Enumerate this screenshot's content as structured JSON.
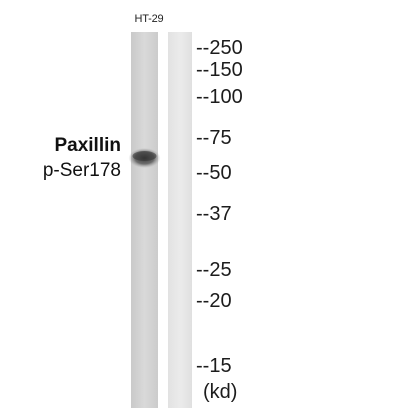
{
  "sample": "HT-29",
  "protein": {
    "name": "Paxillin",
    "site": "p-Ser178"
  },
  "markers": [
    {
      "label": "--250",
      "kd": 250
    },
    {
      "label": "--150",
      "kd": 150
    },
    {
      "label": "--100",
      "kd": 100
    },
    {
      "label": "--75",
      "kd": 75
    },
    {
      "label": "--50",
      "kd": 50
    },
    {
      "label": "--37",
      "kd": 37
    },
    {
      "label": "--25",
      "kd": 25
    },
    {
      "label": "--20",
      "kd": 20
    },
    {
      "label": "--15",
      "kd": 15
    }
  ],
  "unit": "(kd)",
  "colors": {
    "lane": "#d8d8d8",
    "band": "#3f3f3f",
    "background": "#ffffff"
  }
}
